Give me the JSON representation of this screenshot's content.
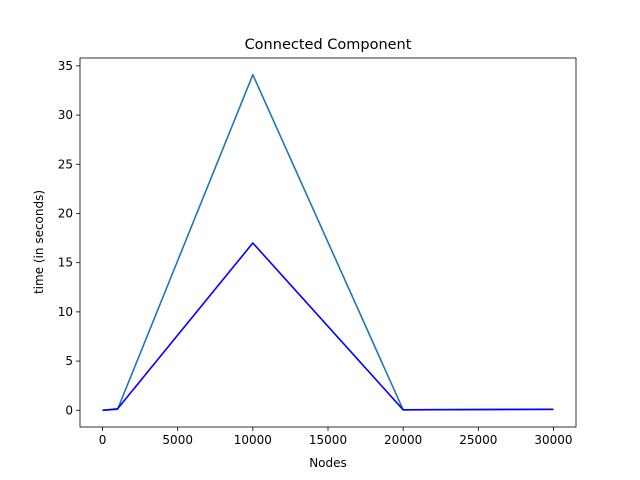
{
  "chart_data": {
    "type": "line",
    "title": "Connected Component",
    "xlabel": "Nodes",
    "ylabel": "time (in seconds)",
    "xlim": [
      -1500,
      31500
    ],
    "ylim": [
      -1.7,
      35.8
    ],
    "xticks": [
      0,
      5000,
      10000,
      15000,
      20000,
      25000,
      30000
    ],
    "yticks": [
      0,
      5,
      10,
      15,
      20,
      25,
      30,
      35
    ],
    "grid": false,
    "series": [
      {
        "color": "#1f77b4",
        "x": [
          0,
          1000,
          10000,
          20000,
          30000
        ],
        "values": [
          0.0,
          0.1,
          34.1,
          0.05,
          0.1
        ]
      },
      {
        "color": "#0000ff",
        "x": [
          0,
          1000,
          10000,
          20000,
          30000
        ],
        "values": [
          0.0,
          0.15,
          17.0,
          0.05,
          0.1
        ]
      }
    ]
  }
}
